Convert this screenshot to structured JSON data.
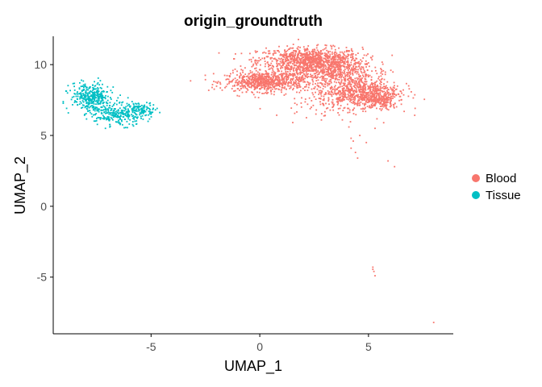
{
  "chart_data": {
    "type": "scatter",
    "title": "origin_groundtruth",
    "xlabel": "UMAP_1",
    "ylabel": "UMAP_2",
    "xlim": [
      -9.5,
      8.9
    ],
    "ylim": [
      -9.0,
      12.0
    ],
    "x_ticks": [
      -5,
      0,
      5
    ],
    "y_ticks": [
      -5,
      0,
      5,
      10
    ],
    "grid": false,
    "legend_position": "right",
    "series": [
      {
        "name": "Blood",
        "color": "#F8766D",
        "clusters": [
          {
            "cx": 2.3,
            "cy": 10.3,
            "sx": 1.2,
            "sy": 0.45,
            "n": 900
          },
          {
            "cx": 0.2,
            "cy": 8.8,
            "sx": 0.9,
            "sy": 0.35,
            "n": 700
          },
          {
            "cx": 4.6,
            "cy": 8.1,
            "sx": 0.9,
            "sy": 0.55,
            "n": 700
          },
          {
            "cx": 3.2,
            "cy": 9.6,
            "sx": 1.0,
            "sy": 0.5,
            "n": 500
          },
          {
            "cx": 5.5,
            "cy": 7.4,
            "sx": 0.45,
            "sy": 0.3,
            "n": 180
          },
          {
            "cx": 3.3,
            "cy": 7.8,
            "sx": 1.2,
            "sy": 0.8,
            "n": 120
          }
        ],
        "outliers": [
          [
            4.6,
            5.0
          ],
          [
            4.3,
            4.6
          ],
          [
            4.2,
            4.8
          ],
          [
            3.0,
            6.4
          ],
          [
            2.6,
            6.8
          ],
          [
            3.8,
            6.1
          ],
          [
            4.1,
            5.6
          ],
          [
            5.7,
            5.9
          ],
          [
            4.4,
            3.8
          ],
          [
            4.2,
            4.1
          ],
          [
            5.9,
            3.2
          ],
          [
            6.2,
            2.8
          ],
          [
            4.5,
            3.4
          ],
          [
            5.2,
            -4.3
          ],
          [
            5.25,
            -4.6
          ],
          [
            5.3,
            -4.9
          ],
          [
            5.2,
            -4.45
          ],
          [
            8.0,
            -8.2
          ],
          [
            5.3,
            5.5
          ],
          [
            4.9,
            4.5
          ],
          [
            3.6,
            6.6
          ],
          [
            2.2,
            7.2
          ],
          [
            1.6,
            7.6
          ]
        ]
      },
      {
        "name": "Tissue",
        "color": "#00BFC4",
        "clusters": [
          {
            "cx": -7.8,
            "cy": 7.8,
            "sx": 0.45,
            "sy": 0.45,
            "n": 280
          },
          {
            "cx": -6.4,
            "cy": 6.4,
            "sx": 0.55,
            "sy": 0.35,
            "n": 220
          },
          {
            "cx": -5.4,
            "cy": 6.9,
            "sx": 0.35,
            "sy": 0.2,
            "n": 90
          },
          {
            "cx": -7.3,
            "cy": 7.1,
            "sx": 0.5,
            "sy": 0.4,
            "n": 120
          }
        ],
        "outliers": [
          [
            -8.2,
            8.9
          ],
          [
            -7.1,
            5.5
          ],
          [
            -6.9,
            5.6
          ],
          [
            -4.9,
            6.9
          ],
          [
            -7.5,
            6.2
          ],
          [
            -6.0,
            5.8
          ]
        ]
      }
    ]
  }
}
